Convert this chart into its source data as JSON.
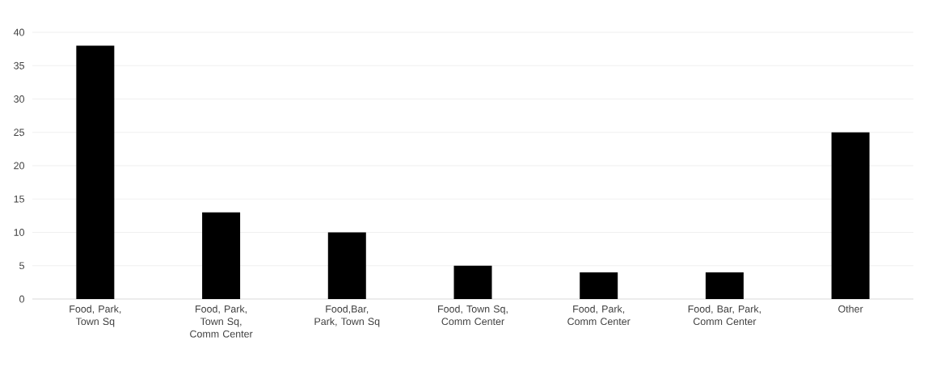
{
  "chart_data": {
    "type": "bar",
    "categories": [
      "Food, Park, Town Sq",
      "Food, Park, Town Sq, Comm Center",
      "Food,Bar, Park, Town Sq",
      "Food, Town Sq, Comm Center",
      "Food, Park, Comm Center",
      "Food, Bar, Park, Comm Center",
      "Other"
    ],
    "values": [
      38,
      13,
      10,
      5,
      4,
      4,
      25
    ],
    "color": "#000000",
    "ylim": [
      0,
      40
    ],
    "yticks": [
      0,
      5,
      10,
      15,
      20,
      25,
      30,
      35,
      40
    ],
    "grid": "y"
  }
}
